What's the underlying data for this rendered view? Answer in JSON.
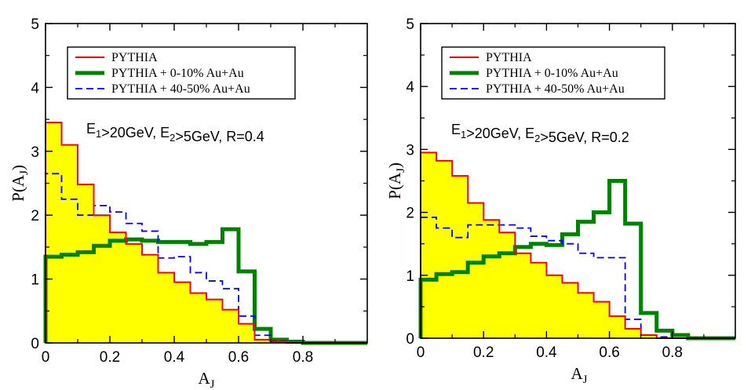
{
  "chart_data": [
    {
      "type": "histogram",
      "xlabel": "A",
      "xlabel_sub": "J",
      "ylabel": "P(A",
      "ylabel_sub": "J",
      "ylabel_close": ")",
      "xlim": [
        0,
        1.0
      ],
      "ylim": [
        0,
        5
      ],
      "xticks": [
        0,
        0.2,
        0.4,
        0.6,
        0.8
      ],
      "xtick_labels": [
        "0",
        "0.2",
        "0.4",
        "0.6",
        "0.8"
      ],
      "yticks": [
        0,
        1,
        2,
        3,
        4,
        5
      ],
      "ytick_labels": [
        "0",
        "1",
        "2",
        "3",
        "4",
        "5"
      ],
      "annotation": {
        "parts": [
          {
            "text": "E"
          },
          {
            "text": "1",
            "sub": true
          },
          {
            "text": ">20GeV, E"
          },
          {
            "text": "2",
            "sub": true
          },
          {
            "text": ">5GeV, R=0.4"
          }
        ]
      },
      "bin_edges": [
        0,
        0.05,
        0.1,
        0.15,
        0.2,
        0.25,
        0.3,
        0.35,
        0.4,
        0.45,
        0.5,
        0.55,
        0.6,
        0.65,
        0.7,
        0.75,
        0.8,
        0.85,
        0.9,
        0.95,
        1.0
      ],
      "series": [
        {
          "name": "PYTHIA",
          "style": "solid-thin",
          "color": "#ff0000",
          "fill": "#ffff00",
          "values": [
            3.45,
            3.1,
            2.48,
            2.0,
            1.73,
            1.55,
            1.38,
            1.1,
            0.95,
            0.78,
            0.68,
            0.52,
            0.3,
            0.05,
            0.02,
            0.0,
            0.0,
            0.0,
            0.0,
            0.0
          ]
        },
        {
          "name": "PYTHIA + 0-10% Au+Au",
          "style": "solid-thick",
          "color": "#008000",
          "values": [
            1.35,
            1.38,
            1.42,
            1.52,
            1.6,
            1.62,
            1.6,
            1.58,
            1.58,
            1.55,
            1.58,
            1.78,
            1.12,
            0.22,
            0.05,
            0.02,
            0.0,
            0.0,
            0.0,
            0.0
          ]
        },
        {
          "name": "PYTHIA + 40-50% Au+Au",
          "style": "dashed",
          "color": "#0000ff",
          "values": [
            2.65,
            2.25,
            2.0,
            2.15,
            2.05,
            1.87,
            1.75,
            1.33,
            1.35,
            1.1,
            0.97,
            0.85,
            0.42,
            0.12,
            0.03,
            0.0,
            0.0,
            0.0,
            0.0,
            0.0
          ]
        }
      ]
    },
    {
      "type": "histogram",
      "xlabel": "A",
      "xlabel_sub": "J",
      "ylabel": "P(A",
      "ylabel_sub": "J",
      "ylabel_close": ")",
      "xlim": [
        0,
        1.0
      ],
      "ylim": [
        0,
        5
      ],
      "xticks": [
        0,
        0.2,
        0.4,
        0.6,
        0.8
      ],
      "xtick_labels": [
        "0",
        "0.2",
        "0.4",
        "0.6",
        "0.8"
      ],
      "yticks": [
        0,
        1,
        2,
        3,
        4,
        5
      ],
      "ytick_labels": [
        "0",
        "1",
        "2",
        "3",
        "4",
        "5"
      ],
      "annotation": {
        "parts": [
          {
            "text": "E"
          },
          {
            "text": "1",
            "sub": true
          },
          {
            "text": ">20GeV, E"
          },
          {
            "text": "2",
            "sub": true
          },
          {
            "text": ">5GeV, R=0.2"
          }
        ]
      },
      "bin_edges": [
        0,
        0.05,
        0.1,
        0.15,
        0.2,
        0.25,
        0.3,
        0.35,
        0.4,
        0.45,
        0.5,
        0.55,
        0.6,
        0.65,
        0.7,
        0.75,
        0.8,
        0.85,
        0.9,
        0.95,
        1.0
      ],
      "series": [
        {
          "name": "PYTHIA",
          "style": "solid-thin",
          "color": "#ff0000",
          "fill": "#ffff00",
          "values": [
            2.95,
            2.82,
            2.58,
            2.15,
            1.88,
            1.68,
            1.35,
            1.2,
            1.0,
            0.88,
            0.72,
            0.58,
            0.35,
            0.15,
            0.05,
            0.0,
            0.0,
            0.0,
            0.0,
            0.0
          ]
        },
        {
          "name": "PYTHIA + 0-10% Au+Au",
          "style": "solid-thick",
          "color": "#008000",
          "values": [
            0.93,
            1.02,
            1.05,
            1.2,
            1.3,
            1.35,
            1.45,
            1.5,
            1.48,
            1.65,
            1.85,
            2.0,
            2.5,
            1.82,
            0.4,
            0.12,
            0.05,
            0.0,
            0.0,
            0.0
          ]
        },
        {
          "name": "PYTHIA + 40-50% Au+Au",
          "style": "dashed",
          "color": "#0000ff",
          "values": [
            1.92,
            1.75,
            1.6,
            1.8,
            1.8,
            1.8,
            1.75,
            1.62,
            1.55,
            1.5,
            1.35,
            1.28,
            1.28,
            0.3,
            0.05,
            0.02,
            0.0,
            0.0,
            0.0,
            0.0
          ]
        }
      ]
    }
  ]
}
